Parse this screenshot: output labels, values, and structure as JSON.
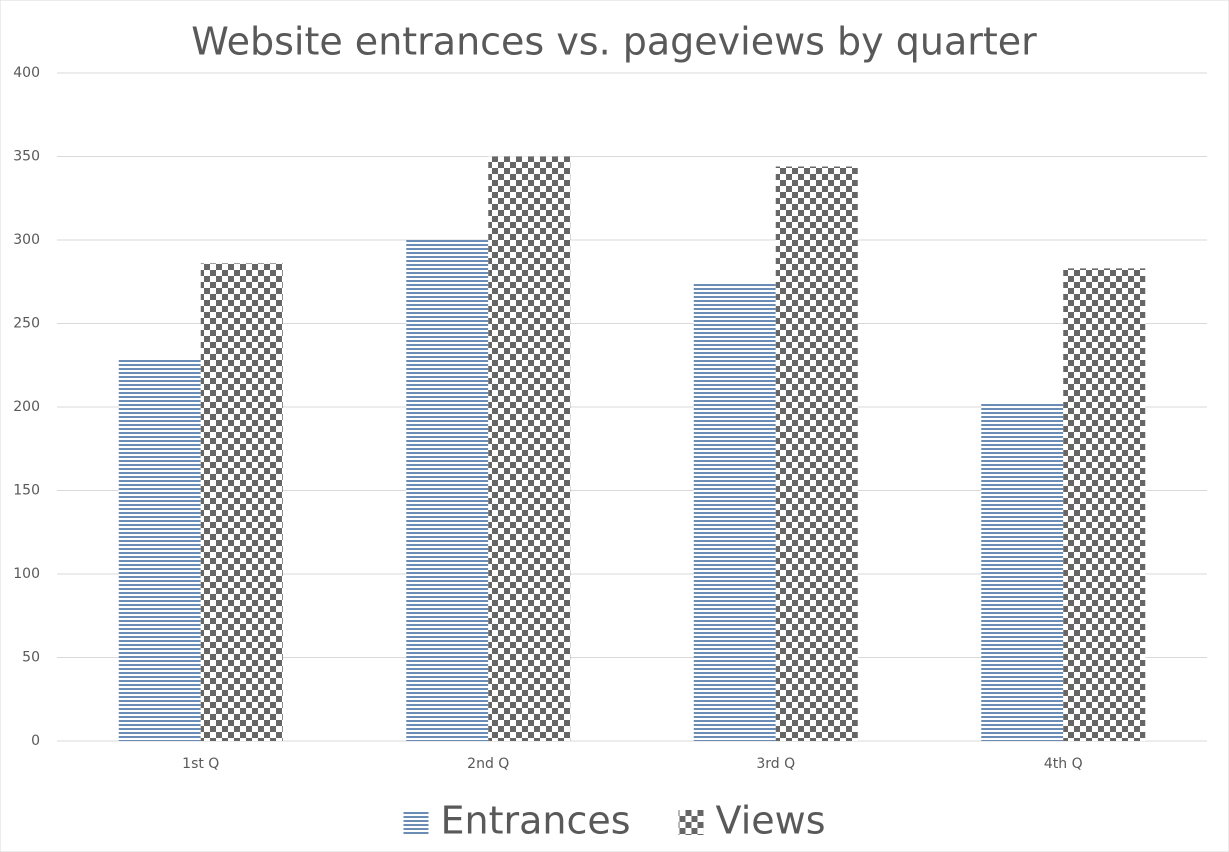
{
  "chart_data": {
    "type": "bar",
    "title": "Website entrances vs. pageviews by quarter",
    "categories": [
      "1st Q",
      "2nd Q",
      "3rd Q",
      "4th Q"
    ],
    "series": [
      {
        "name": "Entrances",
        "color": "#6b8db5",
        "pattern": "horizontal-lines",
        "values": [
          229,
          300,
          274,
          202
        ]
      },
      {
        "name": "Views",
        "color": "#666666",
        "pattern": "checkerboard",
        "values": [
          286,
          350,
          344,
          283
        ]
      }
    ],
    "ylim": [
      0,
      400
    ],
    "yticks": [
      0,
      50,
      100,
      150,
      200,
      250,
      300,
      350,
      400
    ],
    "grid": true,
    "legend": "bottom"
  }
}
